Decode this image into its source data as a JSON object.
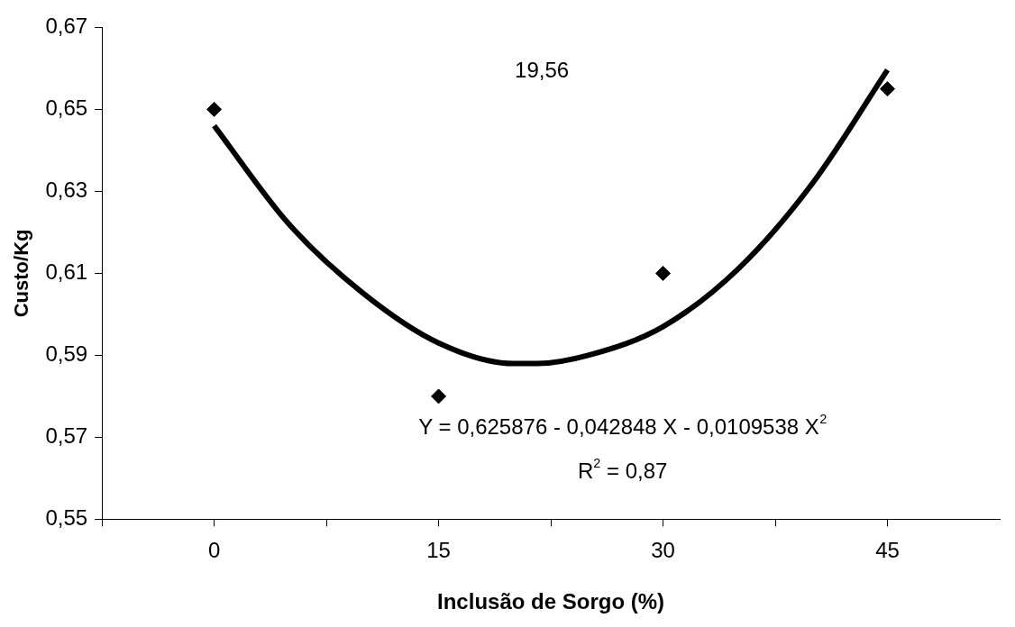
{
  "chart_data": {
    "type": "scatter",
    "xlabel": "Inclusão de Sorgo (%)",
    "ylabel": "Custo/Kg",
    "series": [
      {
        "color": "#000000",
        "x": [
          0,
          15,
          30,
          45
        ],
        "values": [
          0.65,
          0.58,
          0.61,
          0.655
        ],
        "marker": "diamond"
      },
      {
        "type": "line",
        "color": "#000000",
        "x": [
          0,
          5,
          10,
          15,
          20,
          21.6,
          25,
          30,
          35,
          40,
          45
        ],
        "values": [
          0.646,
          0.622,
          0.605,
          0.593,
          0.588,
          0.588,
          0.59,
          0.597,
          0.611,
          0.632,
          0.6596
        ],
        "marker": "none"
      }
    ],
    "xlim": [
      -7.5,
      52.5
    ],
    "xticks": [
      {
        "value": -7.5,
        "label": null
      },
      0,
      {
        "value": 7.5,
        "label": null
      },
      15,
      {
        "value": 22.5,
        "label": null
      },
      30,
      {
        "value": 37.5,
        "label": null
      },
      45
    ],
    "ylim": [
      0.55,
      0.67
    ],
    "yticks": [
      {
        "value": 0.55,
        "label": "0,55"
      },
      {
        "value": 0.57,
        "label": "0,57"
      },
      {
        "value": 0.59,
        "label": "0,59"
      },
      {
        "value": 0.61,
        "label": "0,61"
      },
      {
        "value": 0.63,
        "label": "0,63"
      },
      {
        "value": 0.65,
        "label": "0,65"
      },
      {
        "value": 0.67,
        "label": "0,67"
      }
    ],
    "grid": false,
    "legend": false,
    "annotations": [
      "19,56",
      "Y = 0,625876 - 0,042848 X - 0,0109538 X$^{2}$",
      "R$^{2}$ = 0,87"
    ]
  }
}
